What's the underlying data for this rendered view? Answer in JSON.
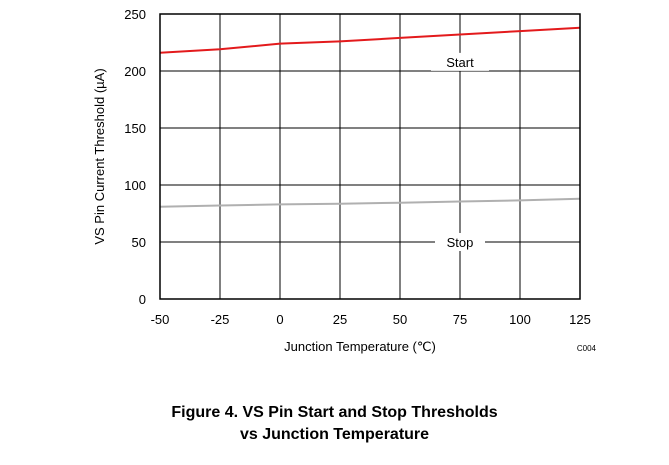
{
  "chart_data": {
    "type": "line",
    "xlabel": "Junction Temperature (℃)",
    "ylabel": "VS Pin Current Threshold (µA)",
    "xlim": [
      -50,
      125
    ],
    "ylim": [
      0,
      250
    ],
    "xticks": [
      -50,
      -25,
      0,
      25,
      50,
      75,
      100,
      125
    ],
    "yticks": [
      0,
      50,
      100,
      150,
      200,
      250
    ],
    "grid": true,
    "code": "C004",
    "series": [
      {
        "name": "Start",
        "color": "#e31a1c",
        "x": [
          -50,
          -25,
          0,
          25,
          50,
          75,
          100,
          125
        ],
        "y": [
          216,
          219,
          224,
          226,
          229,
          232,
          235,
          238
        ]
      },
      {
        "name": "Stop",
        "color": "#b0b0b0",
        "x": [
          -50,
          -25,
          0,
          25,
          50,
          75,
          100,
          125
        ],
        "y": [
          81,
          82,
          83,
          83.5,
          84.5,
          85.5,
          86.5,
          88
        ]
      }
    ],
    "annotations": [
      {
        "text": "Start",
        "x": 75,
        "y": 208
      },
      {
        "text": "Stop",
        "x": 75,
        "y": 50
      }
    ]
  },
  "caption": {
    "line1": "Figure 4. VS Pin Start and Stop Thresholds",
    "line2": "vs Junction Temperature"
  }
}
